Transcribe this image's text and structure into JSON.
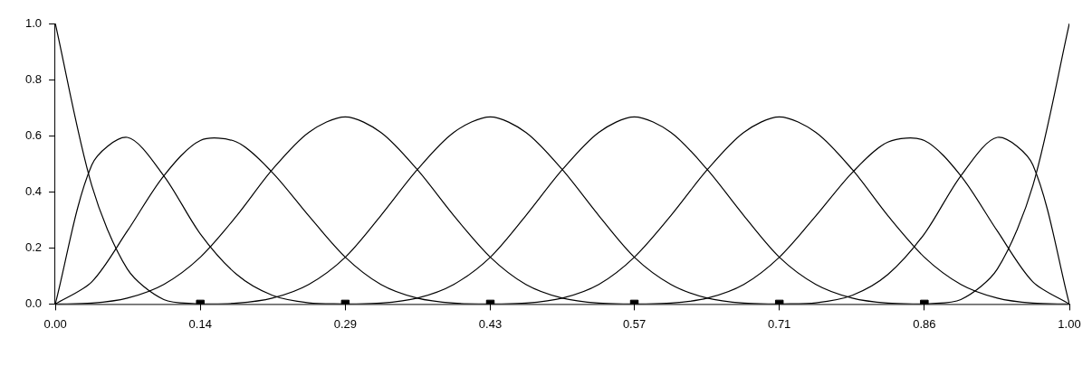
{
  "chart_data": {
    "type": "line",
    "series": [
      {
        "color": "#000000",
        "x": [
          0,
          0.036,
          0.071,
          0.107,
          0.143
        ],
        "values": [
          1,
          0.422,
          0.125,
          0.016,
          0
        ]
      },
      {
        "color": "#000000",
        "x": [
          0,
          0.036,
          0.071,
          0.107,
          0.143,
          0.179,
          0.214,
          0.25,
          0.286
        ],
        "values": [
          0,
          0.496,
          0.594,
          0.457,
          0.25,
          0.105,
          0.031,
          0.004,
          0
        ]
      },
      {
        "color": "#000000",
        "x": [
          0,
          0.036,
          0.071,
          0.107,
          0.143,
          0.179,
          0.214,
          0.25,
          0.286,
          0.321,
          0.357,
          0.393,
          0.429
        ],
        "values": [
          0,
          0.079,
          0.26,
          0.457,
          0.583,
          0.577,
          0.469,
          0.314,
          0.167,
          0.07,
          0.021,
          0.003,
          0
        ]
      },
      {
        "color": "#000000",
        "x": [
          0,
          0.036,
          0.071,
          0.107,
          0.143,
          0.179,
          0.214,
          0.25,
          0.286,
          0.321,
          0.357,
          0.393,
          0.429,
          0.464,
          0.5,
          0.536,
          0.571
        ],
        "values": [
          0,
          0.003,
          0.021,
          0.07,
          0.167,
          0.315,
          0.479,
          0.612,
          0.667,
          0.612,
          0.479,
          0.315,
          0.167,
          0.07,
          0.021,
          0.003,
          0
        ]
      },
      {
        "color": "#000000",
        "x": [
          0.143,
          0.179,
          0.214,
          0.25,
          0.286,
          0.321,
          0.357,
          0.393,
          0.429,
          0.464,
          0.5,
          0.536,
          0.571,
          0.607,
          0.643,
          0.679,
          0.714
        ],
        "values": [
          0,
          0.003,
          0.021,
          0.07,
          0.167,
          0.315,
          0.479,
          0.612,
          0.667,
          0.612,
          0.479,
          0.315,
          0.167,
          0.07,
          0.021,
          0.003,
          0
        ]
      },
      {
        "color": "#000000",
        "x": [
          0.286,
          0.321,
          0.357,
          0.393,
          0.429,
          0.464,
          0.5,
          0.536,
          0.571,
          0.607,
          0.643,
          0.679,
          0.714,
          0.75,
          0.786,
          0.821,
          0.857
        ],
        "values": [
          0,
          0.003,
          0.021,
          0.07,
          0.167,
          0.315,
          0.479,
          0.612,
          0.667,
          0.612,
          0.479,
          0.315,
          0.167,
          0.07,
          0.021,
          0.003,
          0
        ]
      },
      {
        "color": "#000000",
        "x": [
          0.429,
          0.464,
          0.5,
          0.536,
          0.571,
          0.607,
          0.643,
          0.679,
          0.714,
          0.75,
          0.786,
          0.821,
          0.857,
          0.893,
          0.929,
          0.964,
          1
        ],
        "values": [
          0,
          0.003,
          0.021,
          0.07,
          0.167,
          0.315,
          0.479,
          0.612,
          0.667,
          0.612,
          0.479,
          0.315,
          0.167,
          0.07,
          0.021,
          0.003,
          0
        ]
      },
      {
        "color": "#000000",
        "x": [
          0.571,
          0.607,
          0.643,
          0.679,
          0.714,
          0.75,
          0.786,
          0.821,
          0.857,
          0.893,
          0.929,
          0.964,
          1
        ],
        "values": [
          0,
          0.003,
          0.021,
          0.07,
          0.167,
          0.314,
          0.469,
          0.577,
          0.583,
          0.457,
          0.26,
          0.079,
          0
        ]
      },
      {
        "color": "#000000",
        "x": [
          0.714,
          0.75,
          0.786,
          0.821,
          0.857,
          0.893,
          0.929,
          0.964,
          1
        ],
        "values": [
          0,
          0.004,
          0.031,
          0.105,
          0.25,
          0.457,
          0.594,
          0.496,
          0
        ]
      },
      {
        "color": "#000000",
        "x": [
          0.857,
          0.893,
          0.929,
          0.964,
          1
        ],
        "values": [
          0,
          0.016,
          0.125,
          0.422,
          1
        ]
      },
      {
        "type": "scatter",
        "marker": "square",
        "color": "#000000",
        "x": [
          0.143,
          0.286,
          0.429,
          0.571,
          0.714,
          0.857
        ],
        "values": [
          0,
          0,
          0,
          0,
          0,
          0
        ]
      }
    ],
    "xlim": [
      0,
      1
    ],
    "ylim": [
      0,
      1
    ],
    "xticks": [
      {
        "value": 0,
        "label": "0.00"
      },
      {
        "value": 0.143,
        "label": "0.14"
      },
      {
        "value": 0.286,
        "label": "0.29"
      },
      {
        "value": 0.429,
        "label": "0.43"
      },
      {
        "value": 0.571,
        "label": "0.57"
      },
      {
        "value": 0.714,
        "label": "0.71"
      },
      {
        "value": 0.857,
        "label": "0.86"
      },
      {
        "value": 1,
        "label": "1.00"
      }
    ],
    "yticks": [
      {
        "value": 0,
        "label": "0.0"
      },
      {
        "value": 0.2,
        "label": "0.2"
      },
      {
        "value": 0.4,
        "label": "0.4"
      },
      {
        "value": 0.6,
        "label": "0.6"
      },
      {
        "value": 0.8,
        "label": "0.8"
      },
      {
        "value": 1,
        "label": "1.0"
      }
    ],
    "grid": false,
    "legend": false,
    "line_style": "solid"
  }
}
